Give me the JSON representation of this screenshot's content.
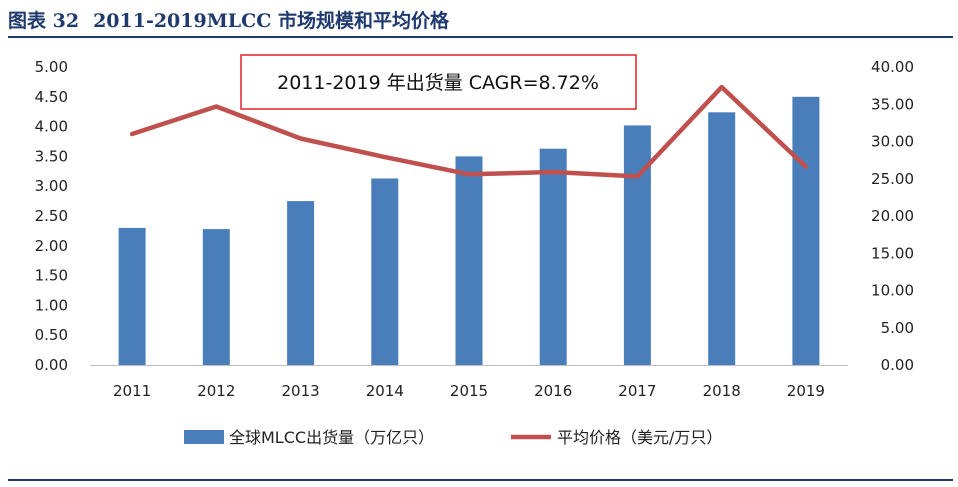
{
  "figure": {
    "label": "图表 32",
    "title": "2011-2019MLCC 市场规模和平均价格"
  },
  "chart_data": {
    "type": "bar",
    "categories": [
      "2011",
      "2012",
      "2013",
      "2014",
      "2015",
      "2016",
      "2017",
      "2018",
      "2019"
    ],
    "series": [
      {
        "name": "全球MLCC出货量（万亿只）",
        "type": "bar",
        "axis": "left",
        "color": "#4a7ebb",
        "values": [
          2.3,
          2.28,
          2.75,
          3.13,
          3.5,
          3.63,
          4.02,
          4.24,
          4.5
        ]
      },
      {
        "name": "平均价格（美元/万只）",
        "type": "line",
        "axis": "right",
        "color": "#c0504d",
        "values": [
          31.0,
          34.7,
          30.4,
          27.9,
          25.6,
          25.9,
          25.3,
          37.3,
          26.6
        ]
      }
    ],
    "y_left": {
      "ylim": [
        0,
        5
      ],
      "ticks": [
        "0.00",
        "0.50",
        "1.00",
        "1.50",
        "2.00",
        "2.50",
        "3.00",
        "3.50",
        "4.00",
        "4.50",
        "5.00"
      ]
    },
    "y_right": {
      "ylim": [
        0,
        40
      ],
      "ticks": [
        "0.00",
        "5.00",
        "10.00",
        "15.00",
        "20.00",
        "25.00",
        "30.00",
        "35.00",
        "40.00"
      ]
    },
    "annotation": "2011-2019 年出货量 CAGR=8.72%",
    "annotation_border_color": "#e0242b",
    "grid": false,
    "legend_position": "bottom"
  }
}
